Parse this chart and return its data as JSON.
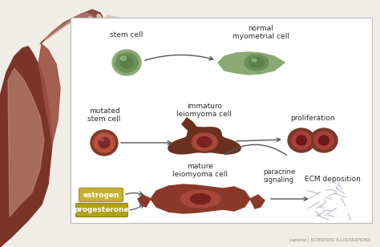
{
  "background_color": "#f0ece6",
  "panel_color": "#ffffff",
  "panel_border": "#bbbbbb",
  "uterus_dark": "#7a3528",
  "uterus_mid": "#9b5040",
  "uterus_light": "#c4907a",
  "uterus_inner": "#e8d0c0",
  "stem_outer": "#8aaa72",
  "stem_mid": "#6a9058",
  "stem_nucleus": "#5a8048",
  "normal_outer": "#8aaa72",
  "normal_nucleus": "#6a9058",
  "mutated_outer": "#8a3828",
  "mutated_mid": "#b85040",
  "mutated_nucleus": "#7a2828",
  "immature_outer": "#6a3020",
  "immature_mid": "#a84838",
  "immature_nucleus": "#7a2020",
  "prolif_outer": "#7a3828",
  "prolif_mid": "#a84038",
  "prolif_nucleus": "#6a1818",
  "mature_outer": "#8a3828",
  "mature_mid": "#a84838",
  "mature_nucleus": "#7a2020",
  "estrogen_fill": "#c8b030",
  "estrogen_border": "#a09020",
  "prog_fill": "#b0a020",
  "prog_border": "#908010",
  "text_color": "#2a2a2a",
  "arrow_color": "#555555",
  "ecm_color": "#9090b8",
  "watermark": "sapiens | SCIENTIFIC ILLUSTRATIONS",
  "labels": {
    "stem_cell": "stem cell",
    "normal_myometrial": "normal\nmyometrial cell",
    "mutated_stem": "mutated\nstem cell",
    "immaturo": "immaturo\nleiomyoma cell",
    "proliferation": "proliferation",
    "paracrine": "paracrine\nsignaling",
    "mature": "mature\nleiomyoma cell",
    "estrogen": "estrogen",
    "progesterone": "progesterone",
    "ecm": "ECM deposition"
  }
}
